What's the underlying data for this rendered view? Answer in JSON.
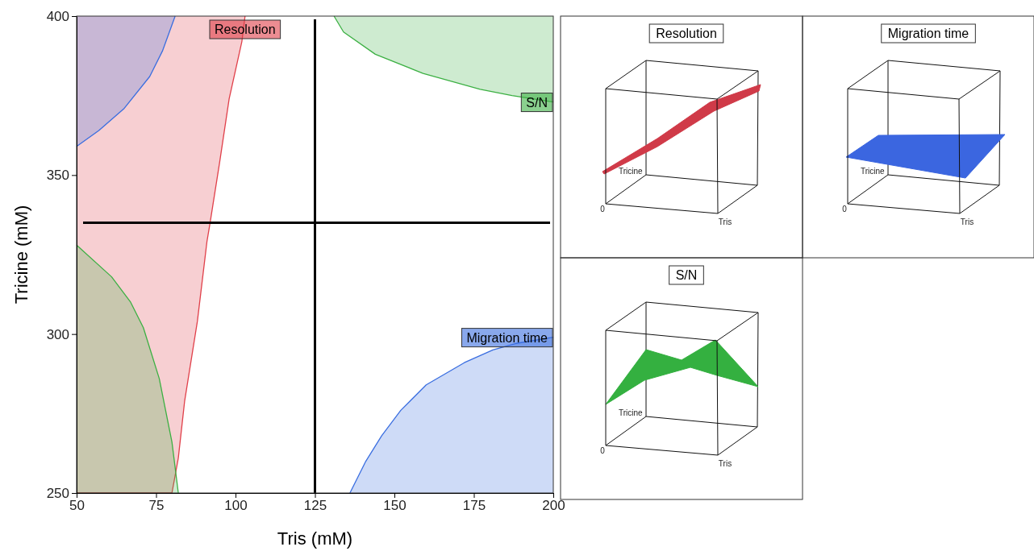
{
  "chart_data": [
    {
      "type": "line",
      "xlabel": "Tris (mM)",
      "ylabel": "Tricine (mM)",
      "xlim": [
        50,
        200
      ],
      "ylim": [
        250,
        400
      ],
      "xticks": [
        50,
        75,
        100,
        125,
        150,
        175,
        200
      ],
      "yticks": [
        250,
        300,
        350,
        400
      ],
      "series": [
        {
          "name": "Resolution",
          "color": "#e0404a",
          "x": [
            50,
            80,
            82,
            84,
            88,
            91,
            92,
            95,
            98,
            102,
            103
          ],
          "values": [
            250,
            250,
            261,
            279,
            304,
            329,
            335,
            354,
            374,
            392,
            400
          ],
          "lower": [
            250,
            250,
            261,
            279,
            304,
            329,
            335,
            354,
            374,
            392,
            400
          ],
          "upper": [
            400,
            400,
            400,
            400,
            400,
            400,
            400,
            400,
            400,
            400,
            400
          ]
        },
        {
          "name": "S/N",
          "color": "#3cb043",
          "x": [
            131,
            134,
            144,
            159,
            177,
            187,
            200
          ],
          "values": [
            400,
            395,
            388,
            382,
            377,
            375,
            373
          ],
          "lower": [
            400,
            395,
            388,
            382,
            377,
            375,
            373
          ],
          "upper": [
            400,
            400,
            400,
            400,
            400,
            400,
            400
          ]
        },
        {
          "color": "#3cb043",
          "x": [
            50,
            61,
            67,
            71,
            76,
            80,
            82
          ],
          "values": [
            328,
            318,
            310,
            302,
            286,
            266,
            250
          ],
          "lower": [
            250,
            250,
            250,
            250,
            250,
            250,
            250
          ],
          "upper": [
            328,
            318,
            310,
            302,
            286,
            266,
            250
          ]
        },
        {
          "color": "#3a6ee0",
          "x": [
            50,
            57,
            65,
            73,
            77,
            81
          ],
          "values": [
            359,
            364,
            371,
            381,
            389,
            400
          ],
          "lower": [
            359,
            364,
            371,
            381,
            389,
            400
          ],
          "upper": [
            400,
            400,
            400,
            400,
            400,
            400
          ]
        },
        {
          "name": "Migration time",
          "color": "#3a6ee0",
          "x": [
            136,
            141,
            146,
            152,
            160,
            172,
            181,
            188,
            200
          ],
          "values": [
            250,
            260,
            268,
            276,
            284,
            291,
            295,
            297,
            299
          ],
          "lower": [
            250,
            250,
            250,
            250,
            250,
            250,
            250,
            250,
            250
          ],
          "upper": [
            250,
            260,
            268,
            276,
            284,
            291,
            295,
            297,
            299
          ]
        }
      ],
      "ref_lines": [
        {
          "axis": "x",
          "value": 125
        },
        {
          "axis": "y",
          "value": 335
        }
      ]
    },
    {
      "type": "other",
      "title": "Resolution",
      "annotations": [
        "Tricine",
        "0",
        "Tris"
      ]
    },
    {
      "type": "other",
      "title": "Migration time",
      "annotations": [
        "Tricine",
        "0",
        "Tris"
      ]
    },
    {
      "type": "other",
      "title": "S/N",
      "annotations": [
        "Tricine",
        "0",
        "Tris"
      ]
    }
  ]
}
